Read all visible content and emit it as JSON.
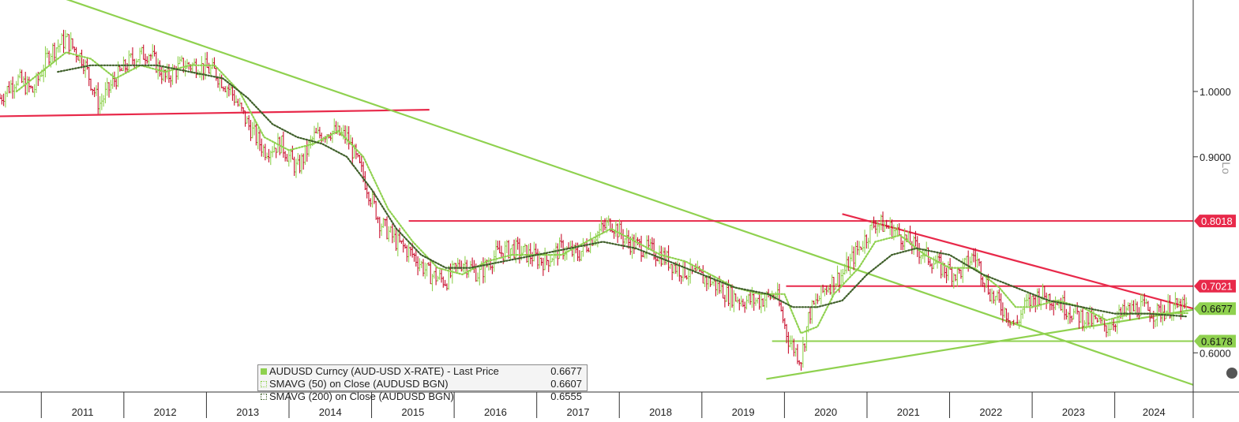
{
  "chart_data": {
    "type": "line",
    "title": "",
    "xlabel": "",
    "ylabel": "",
    "ylim": [
      0.54,
      1.14
    ],
    "y_ticks": [
      1.0,
      0.9,
      0.6
    ],
    "y_tick_labels": [
      "1.0000",
      "0.9000",
      "0.6000"
    ],
    "x_tick_labels": [
      "2011",
      "2012",
      "2013",
      "2014",
      "2015",
      "2016",
      "2017",
      "2018",
      "2019",
      "2020",
      "2021",
      "2022",
      "2023",
      "2024"
    ],
    "x_range": [
      2010.5,
      2024.95
    ],
    "grid": false,
    "legend_position": "bottom-left",
    "series": [
      {
        "name": "AUDUSD Curncy (AUD-USD X-RATE) - Last Price",
        "legend_value": "0.6677",
        "style": "ohlc-bars",
        "color_up": "#8fd14f",
        "color_down": "#c8102e",
        "x": [
          2010.5,
          2010.7,
          2010.9,
          2011.1,
          2011.3,
          2011.5,
          2011.7,
          2011.9,
          2012.1,
          2012.3,
          2012.5,
          2012.7,
          2012.9,
          2013.1,
          2013.3,
          2013.5,
          2013.7,
          2013.9,
          2014.1,
          2014.3,
          2014.5,
          2014.7,
          2014.9,
          2015.1,
          2015.3,
          2015.5,
          2015.7,
          2015.9,
          2016.1,
          2016.3,
          2016.5,
          2016.7,
          2016.9,
          2017.1,
          2017.3,
          2017.5,
          2017.7,
          2017.9,
          2018.1,
          2018.3,
          2018.5,
          2018.7,
          2018.9,
          2019.1,
          2019.3,
          2019.5,
          2019.7,
          2019.9,
          2020.05,
          2020.2,
          2020.3,
          2020.5,
          2020.7,
          2020.9,
          2021.1,
          2021.3,
          2021.5,
          2021.7,
          2021.9,
          2022.1,
          2022.3,
          2022.5,
          2022.7,
          2022.8,
          2022.9,
          2023.1,
          2023.3,
          2023.5,
          2023.7,
          2023.9,
          2024.1,
          2024.3,
          2024.5,
          2024.7,
          2024.88
        ],
        "values": [
          0.99,
          1.02,
          1.0,
          1.06,
          1.08,
          1.05,
          0.98,
          1.02,
          1.05,
          1.06,
          1.02,
          1.04,
          1.04,
          1.03,
          1.0,
          0.95,
          0.91,
          0.92,
          0.88,
          0.93,
          0.94,
          0.93,
          0.87,
          0.8,
          0.77,
          0.75,
          0.72,
          0.71,
          0.74,
          0.72,
          0.75,
          0.76,
          0.75,
          0.74,
          0.76,
          0.75,
          0.78,
          0.8,
          0.77,
          0.76,
          0.75,
          0.73,
          0.72,
          0.71,
          0.69,
          0.68,
          0.68,
          0.69,
          0.62,
          0.59,
          0.66,
          0.7,
          0.72,
          0.76,
          0.8,
          0.79,
          0.77,
          0.75,
          0.73,
          0.72,
          0.75,
          0.69,
          0.66,
          0.64,
          0.67,
          0.69,
          0.68,
          0.66,
          0.65,
          0.64,
          0.66,
          0.67,
          0.66,
          0.67,
          0.6677
        ]
      },
      {
        "name": "SMAVG (50)  on Close (AUDUSD BGN)",
        "legend_value": "0.6607",
        "style": "dotted",
        "color": "#8fd14f",
        "x": [
          2010.7,
          2011.0,
          2011.3,
          2011.6,
          2011.9,
          2012.2,
          2012.5,
          2012.8,
          2013.1,
          2013.4,
          2013.7,
          2014.0,
          2014.3,
          2014.6,
          2014.9,
          2015.2,
          2015.5,
          2015.8,
          2016.1,
          2016.4,
          2016.7,
          2017.0,
          2017.3,
          2017.6,
          2017.9,
          2018.2,
          2018.5,
          2018.8,
          2019.1,
          2019.4,
          2019.7,
          2020.0,
          2020.2,
          2020.4,
          2020.6,
          2020.9,
          2021.1,
          2021.4,
          2021.7,
          2022.0,
          2022.3,
          2022.6,
          2022.8,
          2023.0,
          2023.3,
          2023.6,
          2023.9,
          2024.2,
          2024.5,
          2024.88
        ],
        "values": [
          1.0,
          1.03,
          1.06,
          1.05,
          1.02,
          1.04,
          1.03,
          1.04,
          1.04,
          1.0,
          0.93,
          0.91,
          0.92,
          0.94,
          0.9,
          0.82,
          0.77,
          0.73,
          0.72,
          0.74,
          0.75,
          0.75,
          0.75,
          0.77,
          0.79,
          0.77,
          0.75,
          0.74,
          0.72,
          0.7,
          0.69,
          0.69,
          0.63,
          0.64,
          0.69,
          0.73,
          0.77,
          0.78,
          0.75,
          0.73,
          0.73,
          0.7,
          0.67,
          0.67,
          0.68,
          0.67,
          0.65,
          0.66,
          0.66,
          0.6607
        ]
      },
      {
        "name": "SMAVG (200)  on Close (AUDUSD BGN)",
        "legend_value": "0.6555",
        "style": "dotted",
        "color": "#3f5f2a",
        "x": [
          2011.2,
          2011.6,
          2012.0,
          2012.4,
          2012.8,
          2013.2,
          2013.5,
          2013.8,
          2014.1,
          2014.4,
          2014.7,
          2015.0,
          2015.3,
          2015.6,
          2015.9,
          2016.2,
          2016.6,
          2017.0,
          2017.4,
          2017.8,
          2018.2,
          2018.6,
          2019.0,
          2019.4,
          2019.8,
          2020.1,
          2020.4,
          2020.7,
          2021.0,
          2021.3,
          2021.6,
          2022.0,
          2022.4,
          2022.8,
          2023.2,
          2023.6,
          2024.0,
          2024.4,
          2024.88
        ],
        "values": [
          1.03,
          1.04,
          1.04,
          1.04,
          1.03,
          1.02,
          0.99,
          0.95,
          0.93,
          0.92,
          0.9,
          0.85,
          0.79,
          0.75,
          0.73,
          0.73,
          0.74,
          0.75,
          0.76,
          0.77,
          0.76,
          0.74,
          0.72,
          0.7,
          0.69,
          0.67,
          0.67,
          0.68,
          0.72,
          0.75,
          0.76,
          0.75,
          0.72,
          0.7,
          0.68,
          0.67,
          0.66,
          0.66,
          0.6555
        ]
      }
    ],
    "horizontal_levels": [
      {
        "value": 0.8018,
        "label": "0.8018",
        "color": "#e8294a",
        "x_start": 2015.45
      },
      {
        "value": 0.7021,
        "label": "0.7021",
        "color": "#e8294a",
        "x_start": 2020.02
      },
      {
        "value": 0.6178,
        "label": "0.6178",
        "color": "#8fd14f",
        "x_start": 2019.85
      }
    ],
    "last_price_tags": [
      {
        "value": 0.6677,
        "label": "0.6677",
        "color": "#8fd14f"
      }
    ],
    "trendlines": [
      {
        "color": "#e8294a",
        "points": [
          [
            2010.5,
            0.962
          ],
          [
            2015.7,
            0.972
          ]
        ]
      },
      {
        "color": "#8fd14f",
        "points": [
          [
            2011.1,
            1.15
          ],
          [
            2024.95,
            0.551
          ]
        ]
      },
      {
        "color": "#e8294a",
        "points": [
          [
            2020.7,
            0.8125
          ],
          [
            2024.95,
            0.6677
          ]
        ]
      },
      {
        "color": "#8fd14f",
        "points": [
          [
            2019.78,
            0.56
          ],
          [
            2024.95,
            0.666
          ]
        ]
      }
    ]
  },
  "side_tab": {
    "label": "Lo"
  }
}
